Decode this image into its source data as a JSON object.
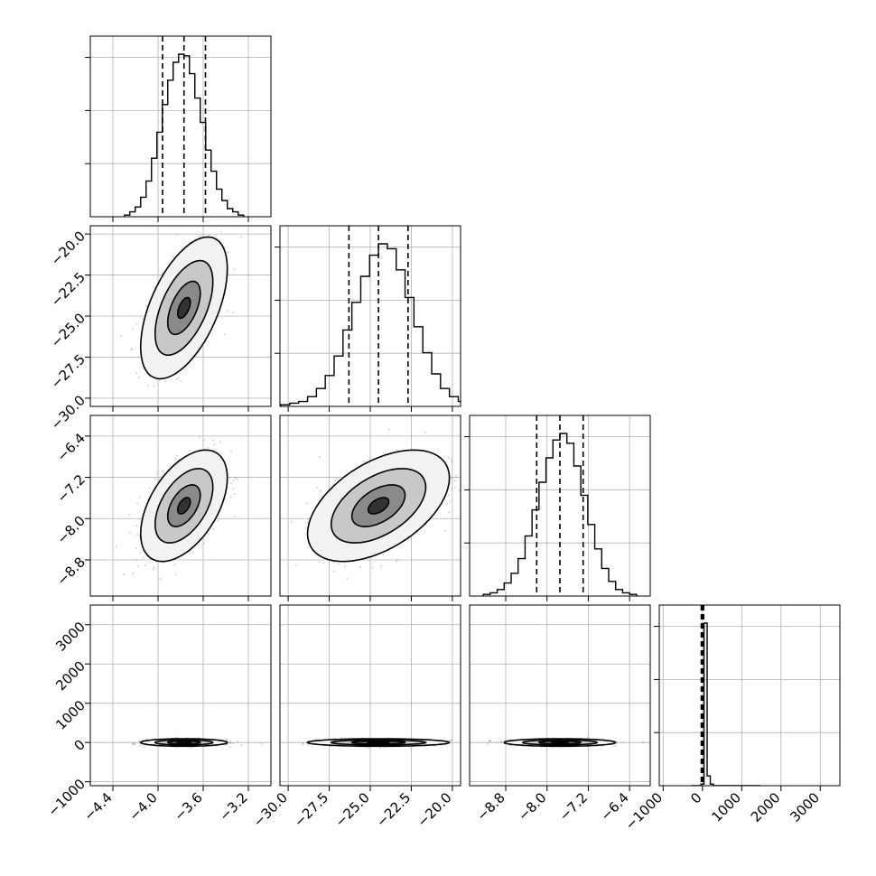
{
  "chart_data": {
    "type": "scatter",
    "plot": "corner",
    "grid": true,
    "colors": {
      "line": "#000000",
      "grid": "#b0b0b0",
      "points": "#9a9a9a",
      "background": "#ffffff"
    },
    "parameters": [
      {
        "range": [
          -4.6,
          -3.0
        ],
        "ticks": [
          "-4.4",
          "-4.0",
          "-3.6",
          "-3.2"
        ],
        "tick_values": [
          -4.4,
          -4.0,
          -3.6,
          -3.2
        ],
        "quantiles": [
          -3.96,
          -3.77,
          -3.58
        ],
        "mean": -3.77,
        "sd": 0.16
      },
      {
        "range": [
          -30.5,
          -19.5
        ],
        "ticks": [
          "-30.0",
          "-27.5",
          "-25.0",
          "-22.5",
          "-20.0"
        ],
        "tick_values": [
          -30.0,
          -27.5,
          -25.0,
          -22.5,
          -20.0
        ],
        "quantiles": [
          -26.3,
          -24.5,
          -22.7
        ],
        "mean": -24.5,
        "sd": 1.8
      },
      {
        "range": [
          -9.5,
          -6.0
        ],
        "ticks": [
          "-8.8",
          "-8.0",
          "-7.2",
          "-6.4"
        ],
        "tick_values": [
          -8.8,
          -8.0,
          -7.2,
          -6.4
        ],
        "quantiles": [
          -8.2,
          -7.75,
          -7.3
        ],
        "mean": -7.75,
        "sd": 0.45
      },
      {
        "range": [
          -1100,
          3500
        ],
        "ticks": [
          "-1000",
          "0",
          "1000",
          "2000",
          "3000"
        ],
        "tick_values": [
          -1000,
          0,
          1000,
          2000,
          3000
        ],
        "quantiles": [
          -30,
          0,
          30
        ],
        "mean": 0,
        "sd": 40
      }
    ],
    "histograms": [
      [
        1,
        3,
        6,
        12,
        22,
        36,
        52,
        69,
        84,
        95,
        100,
        99,
        88,
        73,
        58,
        41,
        28,
        17,
        10,
        5,
        3,
        1
      ],
      [
        1,
        2,
        3,
        6,
        11,
        19,
        31,
        47,
        64,
        80,
        93,
        100,
        97,
        84,
        67,
        49,
        33,
        20,
        11,
        6,
        3,
        1
      ],
      [
        1,
        2,
        4,
        8,
        14,
        23,
        37,
        53,
        70,
        85,
        96,
        100,
        94,
        80,
        62,
        44,
        29,
        17,
        9,
        4,
        2,
        1
      ],
      [
        0,
        0,
        0,
        1,
        100,
        6,
        1,
        0,
        0,
        0,
        0,
        0,
        0,
        0,
        0,
        0,
        0,
        0,
        0,
        0,
        0,
        0
      ]
    ],
    "correlations": {
      "1-0": 0.55,
      "2-0": 0.5,
      "2-1": 0.5,
      "3-0": 0.0,
      "3-1": 0.0,
      "3-2": 0.0
    }
  }
}
